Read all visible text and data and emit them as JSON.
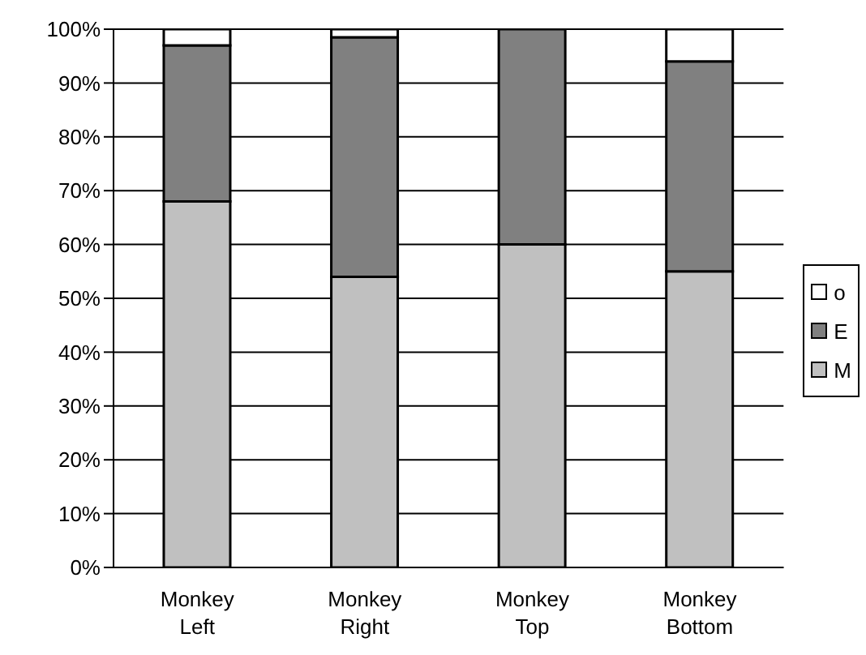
{
  "chart_data": {
    "type": "bar",
    "stacked": true,
    "categories": [
      "Monkey Left",
      "Monkey Right",
      "Monkey Top",
      "Monkey Bottom"
    ],
    "series": [
      {
        "name": "M",
        "color": "#c0c0c0",
        "values": [
          68,
          54,
          60,
          55
        ]
      },
      {
        "name": "E",
        "color": "#808080",
        "values": [
          29,
          44.5,
          40,
          39
        ]
      },
      {
        "name": "o",
        "color": "#ffffff",
        "values": [
          3,
          1.5,
          0,
          6
        ]
      }
    ],
    "ylim": [
      0,
      100
    ],
    "yticks": [
      {
        "value": 0,
        "label": "0%"
      },
      {
        "value": 10,
        "label": "10%"
      },
      {
        "value": 20,
        "label": "20%"
      },
      {
        "value": 30,
        "label": "30%"
      },
      {
        "value": 40,
        "label": "40%"
      },
      {
        "value": 50,
        "label": "50%"
      },
      {
        "value": 60,
        "label": "60%"
      },
      {
        "value": 70,
        "label": "70%"
      },
      {
        "value": 80,
        "label": "80%"
      },
      {
        "value": 90,
        "label": "90%"
      },
      {
        "value": 100,
        "label": "100%"
      }
    ],
    "grid": "y",
    "legend": "right"
  }
}
